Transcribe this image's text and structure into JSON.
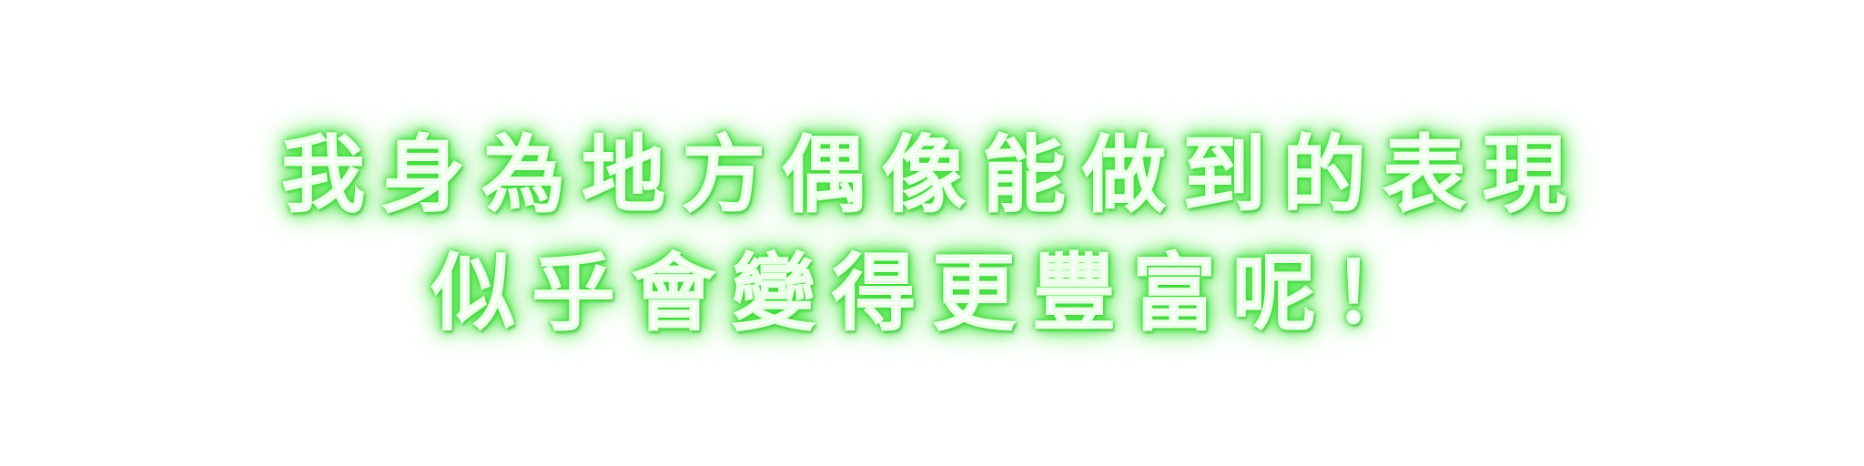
{
  "caption": {
    "line1": "我身為地方偶像能做到的表現",
    "line2": "似乎會變得更豐富呢！"
  },
  "colors": {
    "text": "#ffffff",
    "glow": "#4be045",
    "background": "#ffffff"
  }
}
